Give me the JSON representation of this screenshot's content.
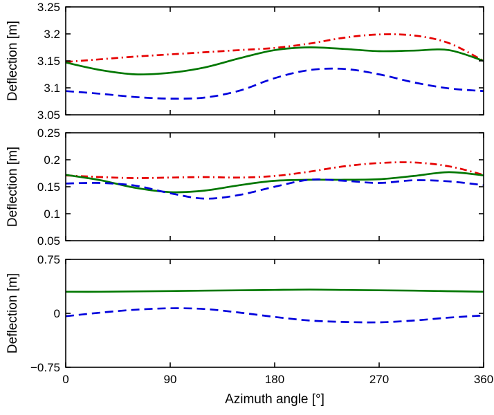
{
  "figure": {
    "background": "#ffffff",
    "axis_color": "#000000",
    "xlabel": "Azimuth angle [°]",
    "xlim": [
      0,
      360
    ],
    "xticks": [
      0,
      90,
      180,
      270,
      360
    ],
    "xticklabels": [
      "0",
      "90",
      "180",
      "270",
      "360"
    ]
  },
  "chart_data": [
    {
      "type": "line",
      "title": "",
      "xlabel": "",
      "ylabel": "Deflection [m]",
      "xlim": [
        0,
        360
      ],
      "ylim": [
        3.05,
        3.25
      ],
      "grid": false,
      "legend": "none",
      "yticks": [
        3.05,
        3.1,
        3.15,
        3.2,
        3.25
      ],
      "yticklabels": [
        "3.05",
        "3.1",
        "3.15",
        "3.2",
        "3.25"
      ],
      "x": [
        0,
        30,
        60,
        90,
        120,
        150,
        180,
        210,
        240,
        270,
        300,
        330,
        360
      ],
      "series": [
        {
          "name": "red-dashdot",
          "color": "#e60000",
          "style": "dashdot",
          "values": [
            3.148,
            3.153,
            3.158,
            3.162,
            3.166,
            3.17,
            3.174,
            3.182,
            3.193,
            3.199,
            3.197,
            3.183,
            3.15
          ]
        },
        {
          "name": "green-solid",
          "color": "#007700",
          "style": "solid",
          "values": [
            3.147,
            3.133,
            3.125,
            3.128,
            3.138,
            3.155,
            3.17,
            3.175,
            3.172,
            3.168,
            3.169,
            3.17,
            3.15
          ]
        },
        {
          "name": "blue-dashed",
          "color": "#0000dd",
          "style": "dashed",
          "values": [
            3.094,
            3.089,
            3.083,
            3.08,
            3.082,
            3.095,
            3.118,
            3.133,
            3.135,
            3.125,
            3.11,
            3.099,
            3.094
          ]
        }
      ]
    },
    {
      "type": "line",
      "title": "",
      "xlabel": "",
      "ylabel": "Deflection [m]",
      "xlim": [
        0,
        360
      ],
      "ylim": [
        0.05,
        0.25
      ],
      "grid": false,
      "legend": "none",
      "yticks": [
        0.05,
        0.1,
        0.15,
        0.2,
        0.25
      ],
      "yticklabels": [
        "0.05",
        "0.1",
        "0.15",
        "0.2",
        "0.25"
      ],
      "x": [
        0,
        30,
        60,
        90,
        120,
        150,
        180,
        210,
        240,
        270,
        300,
        330,
        360
      ],
      "series": [
        {
          "name": "red-dashdot",
          "color": "#e60000",
          "style": "dashdot",
          "values": [
            0.171,
            0.168,
            0.166,
            0.167,
            0.168,
            0.167,
            0.17,
            0.178,
            0.188,
            0.194,
            0.195,
            0.188,
            0.172
          ]
        },
        {
          "name": "green-solid",
          "color": "#007700",
          "style": "solid",
          "values": [
            0.172,
            0.162,
            0.148,
            0.14,
            0.143,
            0.153,
            0.161,
            0.163,
            0.163,
            0.164,
            0.17,
            0.177,
            0.171
          ]
        },
        {
          "name": "blue-dashed",
          "color": "#0000dd",
          "style": "dashed",
          "values": [
            0.156,
            0.157,
            0.152,
            0.138,
            0.128,
            0.135,
            0.15,
            0.163,
            0.161,
            0.157,
            0.162,
            0.16,
            0.153
          ]
        }
      ]
    },
    {
      "type": "line",
      "title": "",
      "xlabel": "Azimuth angle [°]",
      "ylabel": "Deflection [m]",
      "xlim": [
        0,
        360
      ],
      "ylim": [
        -0.75,
        0.75
      ],
      "grid": false,
      "legend": "none",
      "yticks": [
        -0.75,
        0,
        0.75
      ],
      "yticklabels": [
        "−0.75",
        "0",
        "0.75"
      ],
      "x": [
        0,
        30,
        60,
        90,
        120,
        150,
        180,
        210,
        240,
        270,
        300,
        330,
        360
      ],
      "series": [
        {
          "name": "green-solid",
          "color": "#007700",
          "style": "solid",
          "values": [
            0.3,
            0.3,
            0.305,
            0.31,
            0.315,
            0.32,
            0.325,
            0.33,
            0.325,
            0.32,
            0.315,
            0.308,
            0.3
          ]
        },
        {
          "name": "blue-dashed",
          "color": "#0000dd",
          "style": "dashed",
          "values": [
            -0.04,
            0.01,
            0.05,
            0.07,
            0.06,
            0.01,
            -0.05,
            -0.1,
            -0.12,
            -0.125,
            -0.1,
            -0.06,
            -0.03
          ]
        }
      ]
    }
  ]
}
